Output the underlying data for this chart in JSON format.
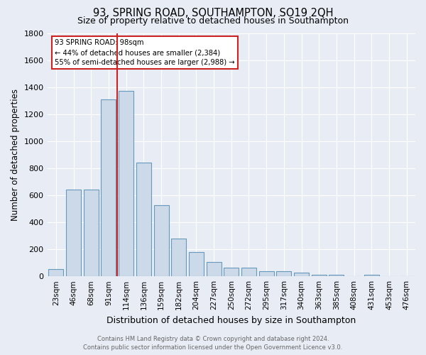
{
  "title": "93, SPRING ROAD, SOUTHAMPTON, SO19 2QH",
  "subtitle": "Size of property relative to detached houses in Southampton",
  "xlabel": "Distribution of detached houses by size in Southampton",
  "ylabel": "Number of detached properties",
  "footer_line1": "Contains HM Land Registry data © Crown copyright and database right 2024.",
  "footer_line2": "Contains public sector information licensed under the Open Government Licence v3.0.",
  "annotation_title": "93 SPRING ROAD: 98sqm",
  "annotation_line2": "← 44% of detached houses are smaller (2,384)",
  "annotation_line3": "55% of semi-detached houses are larger (2,988) →",
  "bar_color": "#ccd9e8",
  "bar_edge_color": "#6699bb",
  "red_line_x": 4,
  "categories": [
    "23sqm",
    "46sqm",
    "68sqm",
    "91sqm",
    "114sqm",
    "136sqm",
    "159sqm",
    "182sqm",
    "204sqm",
    "227sqm",
    "250sqm",
    "272sqm",
    "295sqm",
    "317sqm",
    "340sqm",
    "363sqm",
    "385sqm",
    "408sqm",
    "431sqm",
    "453sqm",
    "476sqm"
  ],
  "values": [
    55,
    640,
    640,
    1310,
    1370,
    840,
    525,
    278,
    178,
    105,
    65,
    65,
    38,
    38,
    25,
    10,
    10,
    0,
    10,
    0,
    0
  ],
  "ylim": [
    0,
    1800
  ],
  "yticks": [
    0,
    200,
    400,
    600,
    800,
    1000,
    1200,
    1400,
    1600,
    1800
  ],
  "background_color": "#e8edf5",
  "grid_color": "#ffffff",
  "title_fontsize": 10.5,
  "subtitle_fontsize": 9,
  "annotation_box_color": "#ffffff",
  "annotation_box_edge": "#cc2222",
  "red_line_color": "#cc2222",
  "ylabel_fontsize": 8.5,
  "xlabel_fontsize": 9,
  "tick_fontsize": 7.5,
  "footer_fontsize": 6.0,
  "footer_color": "#666666"
}
